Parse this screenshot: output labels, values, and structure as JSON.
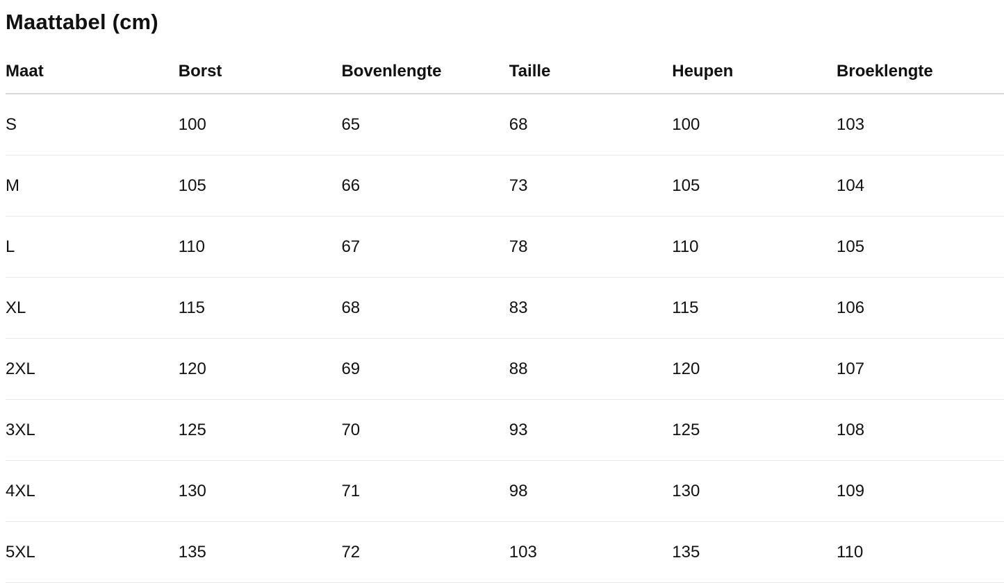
{
  "title": "Maattabel (cm)",
  "headers": [
    "Maat",
    "Borst",
    "Bovenlengte",
    "Taille",
    "Heupen",
    "Broeklengte"
  ],
  "rows": [
    [
      "S",
      "100",
      "65",
      "68",
      "100",
      "103"
    ],
    [
      "M",
      "105",
      "66",
      "73",
      "105",
      "104"
    ],
    [
      "L",
      "110",
      "67",
      "78",
      "110",
      "105"
    ],
    [
      "XL",
      "115",
      "68",
      "83",
      "115",
      "106"
    ],
    [
      "2XL",
      "120",
      "69",
      "88",
      "120",
      "107"
    ],
    [
      "3XL",
      "125",
      "70",
      "93",
      "125",
      "108"
    ],
    [
      "4XL",
      "130",
      "71",
      "98",
      "130",
      "109"
    ],
    [
      "5XL",
      "135",
      "72",
      "103",
      "135",
      "110"
    ]
  ]
}
